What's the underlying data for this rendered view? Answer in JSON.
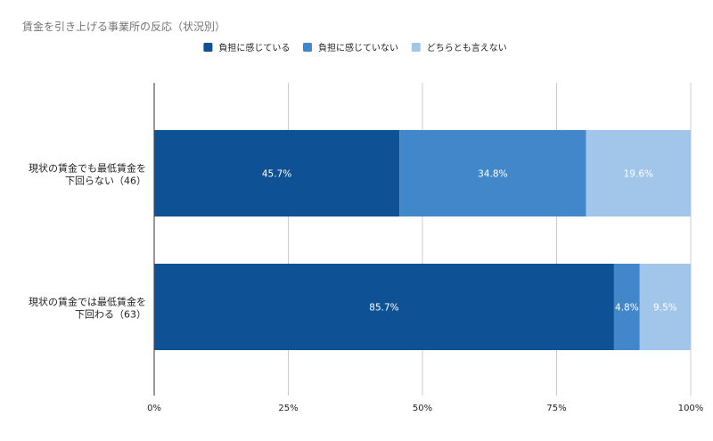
{
  "chart_data": {
    "type": "bar",
    "orientation": "horizontal",
    "stacked": "percent",
    "title": "賃金を引き上げる事業所の反応（状況別）",
    "categories": [
      [
        "現状の賃金でも最低賃金を",
        "下回らない（46）"
      ],
      [
        "現状の賃金では最低賃金を",
        "下回わる（63）"
      ]
    ],
    "series": [
      {
        "name": "負担に感じている",
        "color": "#0e5295",
        "values": [
          45.7,
          85.7
        ],
        "labels": [
          "45.7%",
          "85.7%"
        ]
      },
      {
        "name": "負担に感じていない",
        "color": "#4387cb",
        "values": [
          34.8,
          4.8
        ],
        "labels": [
          "34.8%",
          "4.8%"
        ]
      },
      {
        "name": "どちらとも言えない",
        "color": "#a1c6ea",
        "values": [
          19.6,
          9.5
        ],
        "labels": [
          "19.6%",
          "9.5%"
        ]
      }
    ],
    "xlim": [
      0,
      100
    ],
    "x_ticks": [
      "0%",
      "25%",
      "50%",
      "75%",
      "100%"
    ],
    "grid": true,
    "legend_position": "top-center",
    "title_color": "#757575",
    "grid_color": "#cccccc",
    "axis_color": "#333333",
    "data_label_color": "#ffffff"
  }
}
